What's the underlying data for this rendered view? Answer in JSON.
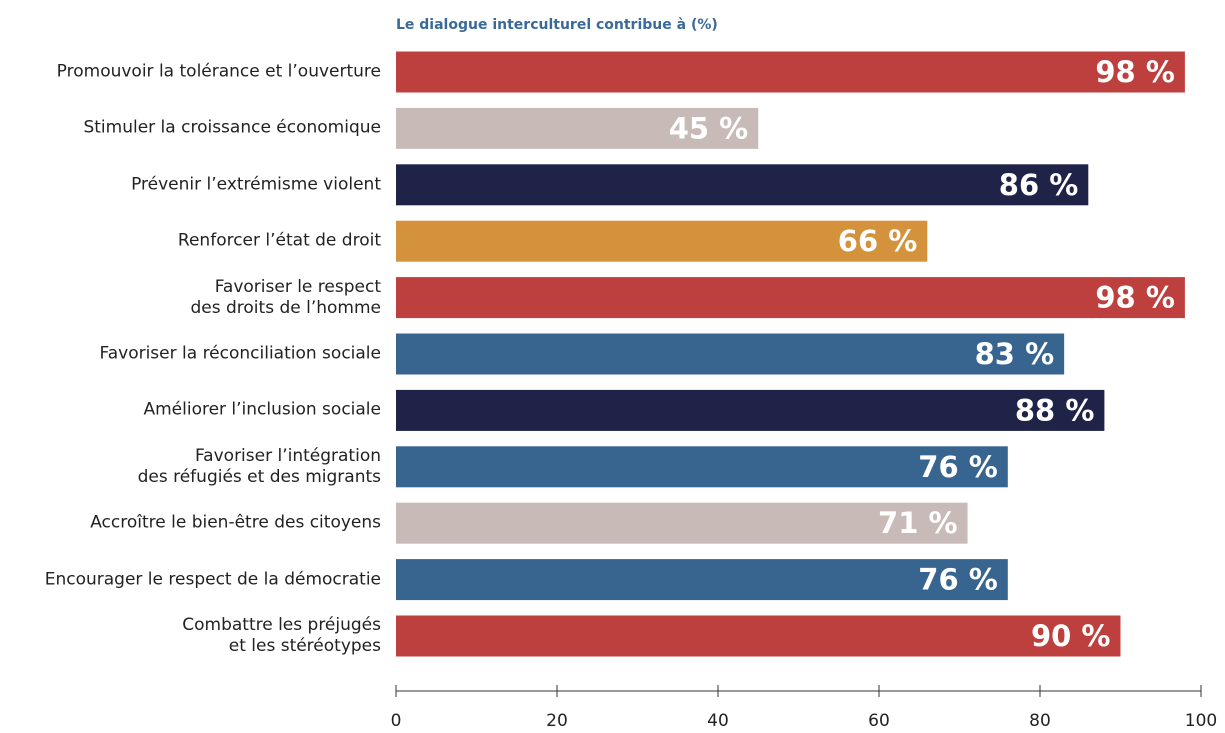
{
  "chart_data": {
    "type": "bar",
    "orientation": "horizontal",
    "title": "Le dialogue interculturel contribue à (%)",
    "categories": [
      "Promouvoir la tolérance et l’ouverture",
      "Stimuler la croissance économique",
      "Prévenir l’extrémisme violent",
      "Renforcer l’état de droit",
      "Favoriser le respect\ndes droits de l’homme",
      "Favoriser la réconciliation sociale",
      "Améliorer l’inclusion sociale",
      "Favoriser l’intégration\ndes réfugiés et des migrants",
      "Accroître le bien-être des citoyens",
      "Encourager le respect de la démocratie",
      "Combattre les préjugés\net les stéréotypes"
    ],
    "values": [
      98,
      45,
      86,
      66,
      98,
      83,
      88,
      76,
      71,
      76,
      90
    ],
    "value_labels": [
      "98 %",
      "45 %",
      "86 %",
      "66 %",
      "98 %",
      "83 %",
      "88 %",
      "76 %",
      "71 %",
      "76 %",
      "90 %"
    ],
    "colors": [
      "#bd3f3e",
      "#c8bbb7",
      "#1e2347",
      "#d4923c",
      "#bd3f3e",
      "#376590",
      "#1e2347",
      "#376590",
      "#c8bbb7",
      "#376590",
      "#bd3f3e"
    ],
    "xlim": [
      0,
      100
    ],
    "xticks": [
      0,
      20,
      40,
      60,
      80,
      100
    ]
  }
}
